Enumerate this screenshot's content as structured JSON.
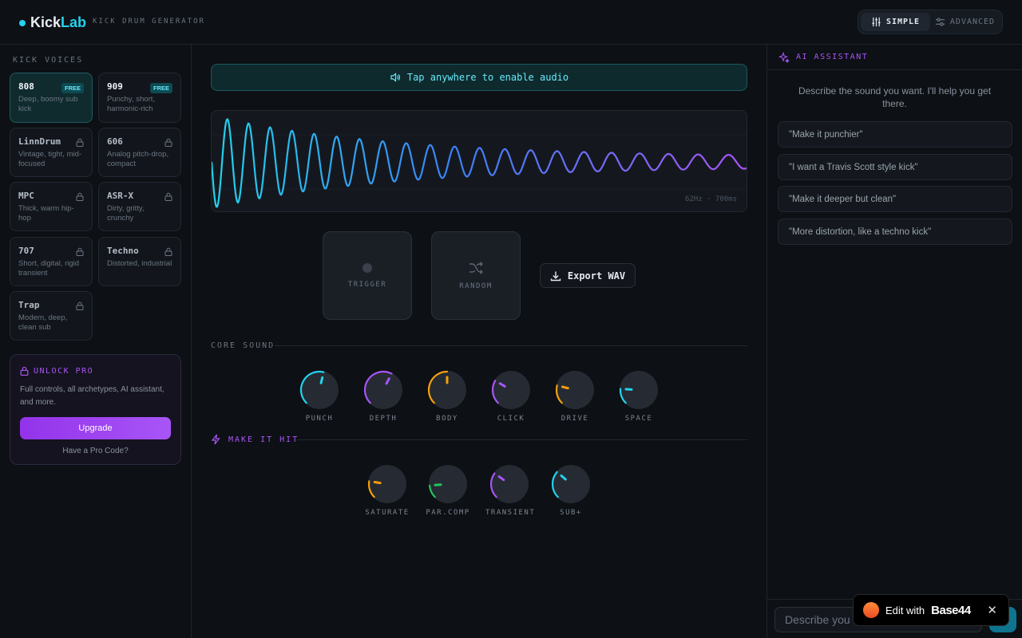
{
  "header": {
    "logo_part1": "Kick",
    "logo_part2": "Lab",
    "tagline": "KICK DRUM GENERATOR",
    "modes": [
      {
        "label": "SIMPLE",
        "active": true
      },
      {
        "label": "ADVANCED",
        "active": false
      }
    ]
  },
  "sidebar": {
    "title": "KICK VOICES",
    "voices": [
      {
        "name": "808",
        "desc": "Deep, boomy sub kick",
        "badge": "FREE",
        "locked": false,
        "active": true
      },
      {
        "name": "909",
        "desc": "Punchy, short, harmonic-rich",
        "badge": "FREE",
        "locked": false,
        "active": false
      },
      {
        "name": "LinnDrum",
        "desc": "Vintage, tight, mid-focused",
        "locked": true
      },
      {
        "name": "606",
        "desc": "Analog pitch-drop, compact",
        "locked": true
      },
      {
        "name": "MPC",
        "desc": "Thick, warm hip-hop",
        "locked": true
      },
      {
        "name": "ASR-X",
        "desc": "Dirty, gritty, crunchy",
        "locked": true
      },
      {
        "name": "707",
        "desc": "Short, digital, rigid transient",
        "locked": true
      },
      {
        "name": "Techno",
        "desc": "Distorted, industrial",
        "locked": true
      },
      {
        "name": "Trap",
        "desc": "Modern, deep, clean sub",
        "locked": true
      }
    ],
    "unlock": {
      "title": "UNLOCK PRO",
      "desc": "Full controls, all archetypes, AI assistant, and more.",
      "button": "Upgrade",
      "code_link": "Have a Pro Code?"
    }
  },
  "main": {
    "audio_banner": "Tap anywhere to enable audio",
    "wave_meta": "62Hz · 700ms",
    "pads": {
      "trigger": "TRIGGER",
      "random": "RANDOM"
    },
    "export_label": "Export WAV",
    "core_sound": {
      "title": "CORE SOUND",
      "knobs": [
        {
          "label": "PUNCH",
          "value": 0.55,
          "color": "#22d3ee"
        },
        {
          "label": "DEPTH",
          "value": 0.6,
          "color": "#a855f7"
        },
        {
          "label": "BODY",
          "value": 0.5,
          "color": "#f59e0b"
        },
        {
          "label": "CLICK",
          "value": 0.28,
          "color": "#a855f7"
        },
        {
          "label": "DRIVE",
          "value": 0.22,
          "color": "#f59e0b"
        },
        {
          "label": "SPACE",
          "value": 0.18,
          "color": "#22d3ee"
        }
      ]
    },
    "make_it_hit": {
      "title": "MAKE IT HIT",
      "knobs": [
        {
          "label": "SATURATE",
          "value": 0.2,
          "color": "#f59e0b"
        },
        {
          "label": "PAR.COMP",
          "value": 0.15,
          "color": "#22c55e"
        },
        {
          "label": "TRANSIENT",
          "value": 0.3,
          "color": "#a855f7"
        },
        {
          "label": "SUB+",
          "value": 0.32,
          "color": "#22d3ee"
        }
      ]
    }
  },
  "assistant": {
    "title": "AI ASSISTANT",
    "intro": "Describe the sound you want. I'll help you get there.",
    "suggestions": [
      "\"Make it punchier\"",
      "\"I want a Travis Scott style kick\"",
      "\"Make it deeper but clean\"",
      "\"More distortion, like a techno kick\""
    ],
    "input_placeholder": "Describe you"
  },
  "base44": {
    "prefix": "Edit with",
    "brand": "Base44",
    "close": "✕"
  },
  "colors": {
    "accent": "#22d3ee",
    "purple": "#a855f7",
    "orange": "#f59e0b",
    "green": "#22c55e"
  }
}
